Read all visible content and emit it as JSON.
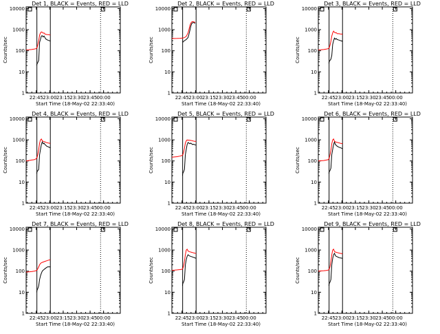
{
  "colors": {
    "events": "#000000",
    "lld": "#ff0000",
    "axes": "#000000",
    "background": "#ffffff"
  },
  "chart_data": {
    "type": "line",
    "shared": {
      "ylabel": "Counts/sec",
      "xlabel": "Start Time (18-May-02 22:33:40)",
      "x_tick_labels": [
        "22:45",
        "23:00",
        "23:15",
        "23:30",
        "23:45",
        "00:00"
      ],
      "x_tick_values": [
        11.33,
        26.33,
        41.33,
        56.33,
        71.33,
        86.33
      ],
      "xlim": [
        0,
        105
      ],
      "y_tick_labels": [
        "1",
        "10",
        "100",
        "1000",
        "10000"
      ],
      "y_tick_values": [
        1,
        10,
        100,
        1000,
        10000
      ],
      "ylim": [
        1,
        12000
      ],
      "yscale": "log",
      "x_units": "minutes after start time"
    },
    "panels": [
      {
        "title": "Det 1, BLACK = Events, RED = LLD",
        "vlines_solid": [
          12,
          27
        ],
        "vline_dotted": 83,
        "series": [
          {
            "name": "Events",
            "x": [
              11.8,
              12,
              13,
              14,
              15,
              16,
              17,
              18,
              19,
              20,
              21,
              22,
              23,
              24,
              25,
              26,
              27
            ],
            "y": [
              20,
              23,
              28,
              35,
              250,
              350,
              500,
              520,
              450,
              500,
              420,
              360,
              340,
              320,
              310,
              300,
              290
            ]
          },
          {
            "name": "LLD",
            "x": [
              0,
              3,
              6,
              9,
              11,
              12,
              13,
              14,
              15,
              16,
              17,
              18,
              19,
              20,
              21,
              22,
              23,
              24,
              25,
              26,
              27
            ],
            "y": [
              110,
              112,
              115,
              120,
              125,
              135,
              190,
              300,
              550,
              700,
              780,
              750,
              680,
              700,
              620,
              600,
              590,
              580,
              575,
              570,
              565
            ]
          }
        ]
      },
      {
        "title": "Det 2, BLACK = Events, RED = LLD",
        "vlines_solid": [
          12,
          27
        ],
        "vline_dotted": 83,
        "series": [
          {
            "name": "Events",
            "x": [
              12,
              13,
              14,
              15,
              16,
              17,
              18,
              19,
              20,
              21,
              22,
              23,
              24,
              25,
              26
            ],
            "y": [
              250,
              280,
              300,
              320,
              340,
              380,
              420,
              600,
              900,
              1400,
              1900,
              2100,
              2200,
              2100,
              2000
            ]
          },
          {
            "name": "LLD",
            "x": [
              0,
              3,
              6,
              9,
              12,
              14,
              16,
              18,
              19,
              20,
              21,
              22,
              23,
              24,
              25,
              26
            ],
            "y": [
              380,
              380,
              385,
              390,
              400,
              420,
              480,
              700,
              1000,
              1500,
              2000,
              2300,
              2400,
              2350,
              2300,
              2200
            ]
          }
        ]
      },
      {
        "title": "Det 3, BLACK = Events, RED = LLD",
        "vlines_solid": [
          12,
          27
        ],
        "vline_dotted": 83,
        "series": [
          {
            "name": "Events",
            "x": [
              11.8,
              12,
              13,
              14,
              15,
              16,
              17,
              18,
              19,
              20,
              21,
              22,
              23,
              24,
              25,
              26,
              27
            ],
            "y": [
              25,
              30,
              35,
              40,
              60,
              200,
              300,
              400,
              350,
              380,
              340,
              330,
              320,
              310,
              300,
              290,
              280
            ]
          },
          {
            "name": "LLD",
            "x": [
              0,
              3,
              6,
              9,
              11,
              12,
              13,
              14,
              15,
              16,
              17,
              18,
              19,
              20,
              21,
              22,
              23,
              24,
              25,
              26,
              27
            ],
            "y": [
              110,
              112,
              115,
              120,
              125,
              135,
              180,
              280,
              500,
              700,
              850,
              750,
              700,
              720,
              650,
              640,
              650,
              630,
              620,
              615,
              610
            ]
          }
        ]
      },
      {
        "title": "Det 4, BLACK = Events, RED = LLD",
        "vlines_solid": [
          12,
          27
        ],
        "vline_dotted": 83,
        "series": [
          {
            "name": "Events",
            "x": [
              11.8,
              12,
              13,
              14,
              15,
              16,
              17,
              18,
              19,
              20,
              21,
              22,
              23,
              24,
              25,
              26,
              27
            ],
            "y": [
              25,
              30,
              35,
              40,
              200,
              350,
              600,
              800,
              650,
              700,
              600,
              550,
              500,
              480,
              460,
              440,
              420
            ]
          },
          {
            "name": "LLD",
            "x": [
              0,
              3,
              6,
              9,
              11,
              12,
              13,
              14,
              15,
              16,
              17,
              18,
              19,
              20,
              21,
              22,
              23,
              24,
              25,
              26,
              27
            ],
            "y": [
              100,
              105,
              110,
              115,
              125,
              140,
              200,
              350,
              700,
              1000,
              1100,
              900,
              850,
              820,
              800,
              760,
              740,
              720,
              700,
              690,
              680
            ]
          }
        ]
      },
      {
        "title": "Det 5, BLACK = Events, RED = LLD",
        "vlines_solid": [
          12,
          27
        ],
        "vline_dotted": 83,
        "series": [
          {
            "name": "Events",
            "x": [
              11.8,
              12,
              13,
              14,
              15,
              16,
              17,
              18,
              19,
              20,
              21,
              22,
              23,
              24,
              25,
              26,
              27
            ],
            "y": [
              20,
              25,
              30,
              40,
              200,
              350,
              600,
              750,
              700,
              650,
              700,
              650,
              600,
              620,
              600,
              580,
              560
            ]
          },
          {
            "name": "LLD",
            "x": [
              0,
              3,
              6,
              9,
              11,
              12,
              13,
              14,
              15,
              16,
              17,
              18,
              19,
              20,
              21,
              22,
              23,
              24,
              25,
              26,
              27
            ],
            "y": [
              150,
              155,
              160,
              170,
              180,
              190,
              250,
              400,
              700,
              900,
              1000,
              950,
              980,
              940,
              950,
              920,
              900,
              880,
              860,
              850,
              840
            ]
          }
        ]
      },
      {
        "title": "Det 6, BLACK = Events, RED = LLD",
        "vlines_solid": [
          12,
          27
        ],
        "vline_dotted": 83,
        "series": [
          {
            "name": "Events",
            "x": [
              11.8,
              12,
              13,
              14,
              15,
              16,
              17,
              18,
              19,
              20,
              21,
              22,
              23,
              24,
              25,
              26,
              27
            ],
            "y": [
              25,
              30,
              35,
              45,
              200,
              350,
              600,
              800,
              600,
              550,
              500,
              470,
              450,
              430,
              420,
              400,
              380
            ]
          },
          {
            "name": "LLD",
            "x": [
              0,
              3,
              6,
              9,
              11,
              12,
              13,
              14,
              15,
              16,
              17,
              18,
              19,
              20,
              21,
              22,
              23,
              24,
              25,
              26,
              27
            ],
            "y": [
              100,
              102,
              105,
              110,
              115,
              130,
              190,
              320,
              650,
              1000,
              1100,
              850,
              800,
              780,
              760,
              740,
              720,
              700,
              680,
              670,
              660
            ]
          }
        ]
      },
      {
        "title": "Det 7, BLACK = Events, RED = LLD",
        "vlines_solid": [
          12,
          27
        ],
        "vline_dotted": 83,
        "series": [
          {
            "name": "Events",
            "x": [
              11.8,
              12,
              13,
              14,
              15,
              16,
              17,
              18,
              19,
              20,
              21,
              22,
              23,
              24,
              25,
              26,
              27
            ],
            "y": [
              10,
              12,
              15,
              20,
              40,
              60,
              80,
              100,
              110,
              120,
              130,
              140,
              150,
              160,
              160,
              160,
              160
            ]
          },
          {
            "name": "LLD",
            "x": [
              0,
              3,
              6,
              9,
              11,
              12,
              13,
              14,
              15,
              16,
              17,
              18,
              19,
              20,
              21,
              22,
              23,
              24,
              25,
              26,
              27
            ],
            "y": [
              90,
              92,
              95,
              100,
              105,
              110,
              130,
              160,
              200,
              230,
              250,
              260,
              270,
              280,
              290,
              300,
              310,
              320,
              330,
              340,
              340
            ]
          }
        ]
      },
      {
        "title": "Det 8, BLACK = Events, RED = LLD",
        "vlines_solid": [
          12,
          27
        ],
        "vline_dotted": 83,
        "series": [
          {
            "name": "Events",
            "x": [
              11.8,
              12,
              13,
              14,
              15,
              16,
              17,
              18,
              19,
              20,
              21,
              22,
              23,
              24,
              25,
              26,
              27
            ],
            "y": [
              20,
              25,
              30,
              40,
              200,
              350,
              500,
              600,
              550,
              520,
              500,
              480,
              470,
              450,
              440,
              420,
              400
            ]
          },
          {
            "name": "LLD",
            "x": [
              0,
              3,
              6,
              9,
              11,
              12,
              13,
              14,
              15,
              16,
              17,
              18,
              19,
              20,
              21,
              22,
              23,
              24,
              25,
              26,
              27
            ],
            "y": [
              110,
              112,
              115,
              118,
              122,
              130,
              170,
              300,
              600,
              1000,
              1100,
              900,
              850,
              820,
              800,
              780,
              760,
              740,
              720,
              700,
              680
            ]
          }
        ]
      },
      {
        "title": "Det 9, BLACK = Events, RED = LLD",
        "vlines_solid": [
          12,
          27
        ],
        "vline_dotted": 83,
        "series": [
          {
            "name": "Events",
            "x": [
              11.8,
              12,
              13,
              14,
              15,
              16,
              17,
              18,
              19,
              20,
              21,
              22,
              23,
              24,
              25,
              26,
              27
            ],
            "y": [
              20,
              25,
              30,
              40,
              200,
              400,
              600,
              700,
              550,
              500,
              480,
              460,
              440,
              430,
              420,
              410,
              400
            ]
          },
          {
            "name": "LLD",
            "x": [
              0,
              3,
              6,
              9,
              11,
              12,
              13,
              14,
              15,
              16,
              17,
              18,
              19,
              20,
              21,
              22,
              23,
              24,
              25,
              26,
              27
            ],
            "y": [
              100,
              102,
              105,
              108,
              112,
              120,
              160,
              280,
              600,
              1000,
              1100,
              850,
              800,
              780,
              760,
              740,
              720,
              700,
              690,
              680,
              670
            ]
          }
        ]
      }
    ]
  }
}
